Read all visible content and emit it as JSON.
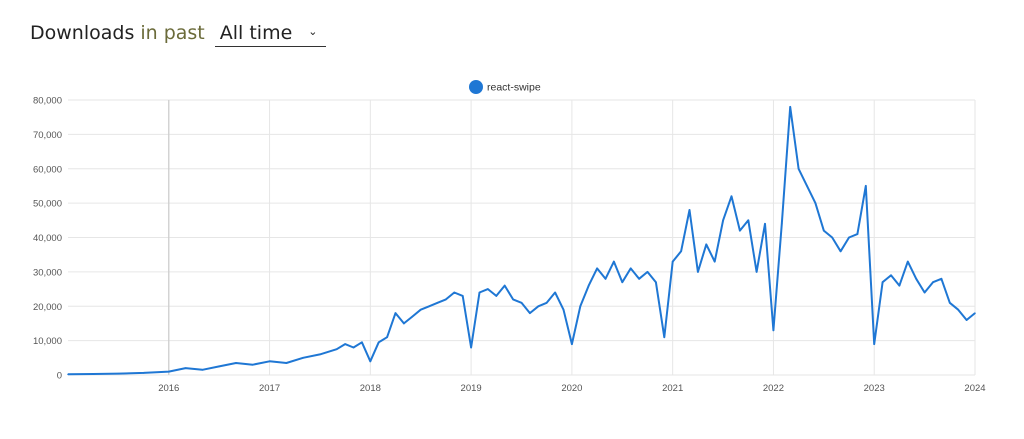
{
  "header": {
    "title": "Downloads",
    "in_past": "in past",
    "range": "All time"
  },
  "colors": {
    "series": "#1f77d4",
    "grid": "#e6e6e6",
    "axis_text": "#555555",
    "year_marker": "#cccccc"
  },
  "chart_data": {
    "type": "line",
    "title": "",
    "legend": {
      "placement": "top-center",
      "entries": [
        "react-swipe"
      ]
    },
    "xlabel": "",
    "ylabel": "",
    "x_ticks": [
      "2016",
      "2017",
      "2018",
      "2019",
      "2020",
      "2021",
      "2022",
      "2023",
      "2024"
    ],
    "xlim": [
      "2015-01",
      "2024-01"
    ],
    "ylim": [
      0,
      80000
    ],
    "y_ticks": [
      0,
      10000,
      20000,
      30000,
      40000,
      50000,
      60000,
      70000,
      80000
    ],
    "y_tick_labels": [
      "0",
      "10,000",
      "20,000",
      "30,000",
      "40,000",
      "50,000",
      "60,000",
      "70,000",
      "80,000"
    ],
    "grid": true,
    "series": [
      {
        "name": "react-swipe",
        "x": [
          "2015-01",
          "2015-04",
          "2015-07",
          "2015-10",
          "2016-01",
          "2016-03",
          "2016-05",
          "2016-07",
          "2016-09",
          "2016-11",
          "2017-01",
          "2017-03",
          "2017-05",
          "2017-07",
          "2017-09",
          "2017-10",
          "2017-11",
          "2017-12",
          "2018-01",
          "2018-02",
          "2018-03",
          "2018-04",
          "2018-05",
          "2018-06",
          "2018-07",
          "2018-08",
          "2018-09",
          "2018-10",
          "2018-11",
          "2018-12",
          "2019-01",
          "2019-02",
          "2019-03",
          "2019-04",
          "2019-05",
          "2019-06",
          "2019-07",
          "2019-08",
          "2019-09",
          "2019-10",
          "2019-11",
          "2019-12",
          "2020-01",
          "2020-02",
          "2020-03",
          "2020-04",
          "2020-05",
          "2020-06",
          "2020-07",
          "2020-08",
          "2020-09",
          "2020-10",
          "2020-11",
          "2020-12",
          "2021-01",
          "2021-02",
          "2021-03",
          "2021-04",
          "2021-05",
          "2021-06",
          "2021-07",
          "2021-08",
          "2021-09",
          "2021-10",
          "2021-11",
          "2021-12",
          "2022-01",
          "2022-02",
          "2022-03",
          "2022-04",
          "2022-05",
          "2022-06",
          "2022-07",
          "2022-08",
          "2022-09",
          "2022-10",
          "2022-11",
          "2022-12",
          "2023-01",
          "2023-02",
          "2023-03",
          "2023-04",
          "2023-05",
          "2023-06",
          "2023-07",
          "2023-08",
          "2023-09",
          "2023-10",
          "2023-11",
          "2023-12",
          "2024-01"
        ],
        "values": [
          200,
          300,
          400,
          600,
          1000,
          2000,
          1500,
          2500,
          3500,
          3000,
          4000,
          3500,
          5000,
          6000,
          7500,
          9000,
          8000,
          9500,
          4000,
          9500,
          11000,
          18000,
          15000,
          17000,
          19000,
          20000,
          21000,
          22000,
          24000,
          23000,
          8000,
          24000,
          25000,
          23000,
          26000,
          22000,
          21000,
          18000,
          20000,
          21000,
          24000,
          19000,
          9000,
          20000,
          26000,
          31000,
          28000,
          33000,
          27000,
          31000,
          28000,
          30000,
          27000,
          11000,
          33000,
          36000,
          48000,
          30000,
          38000,
          33000,
          45000,
          52000,
          42000,
          45000,
          30000,
          44000,
          13000,
          44000,
          78000,
          60000,
          55000,
          50000,
          42000,
          40000,
          36000,
          40000,
          41000,
          55000,
          9000,
          27000,
          29000,
          26000,
          33000,
          28000,
          24000,
          27000,
          28000,
          21000,
          19000,
          16000,
          18000
        ]
      }
    ]
  }
}
